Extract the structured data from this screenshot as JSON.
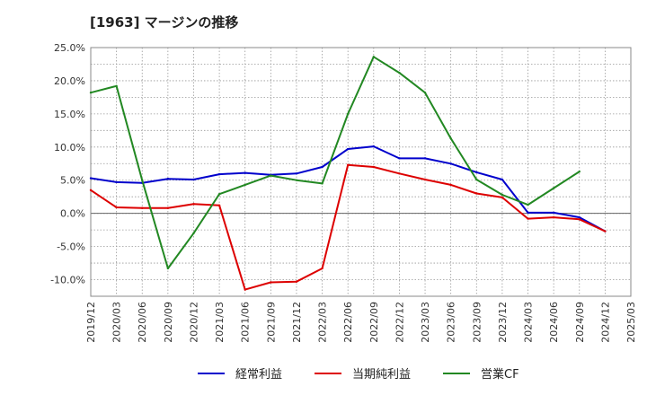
{
  "chart_data": {
    "type": "line",
    "title": "[1963]  マージンの推移",
    "x": [
      "2019/12",
      "2020/03",
      "2020/06",
      "2020/09",
      "2020/12",
      "2021/03",
      "2021/06",
      "2021/09",
      "2021/12",
      "2022/03",
      "2022/06",
      "2022/09",
      "2022/12",
      "2023/03",
      "2023/06",
      "2023/09",
      "2023/12",
      "2024/03",
      "2024/06",
      "2024/09",
      "2024/12",
      "2025/03"
    ],
    "ylim": [
      -12.5,
      25
    ],
    "yticks": [
      "25.0%",
      "20.0%",
      "15.0%",
      "10.0%",
      "5.0%",
      "0.0%",
      "-5.0%",
      "-10.0%"
    ],
    "ytick_values": [
      25,
      20,
      15,
      10,
      5,
      0,
      -5,
      -10
    ],
    "grid": true,
    "legend_position": "bottom",
    "series": [
      {
        "name": "経常利益",
        "color": "#0000cc",
        "values": [
          5.3,
          4.7,
          4.6,
          5.2,
          5.1,
          5.9,
          6.1,
          5.8,
          6.0,
          7.0,
          9.7,
          10.1,
          8.3,
          8.3,
          7.5,
          6.2,
          5.1,
          0.1,
          0.1,
          -0.6,
          -2.7,
          null
        ]
      },
      {
        "name": "当期純利益",
        "color": "#dd0000",
        "values": [
          3.5,
          0.9,
          0.8,
          0.8,
          1.4,
          1.2,
          -11.5,
          -10.4,
          -10.3,
          -8.3,
          7.3,
          7.0,
          6.0,
          5.1,
          4.3,
          3.0,
          2.4,
          -0.8,
          -0.6,
          -0.9,
          -2.7,
          null
        ]
      },
      {
        "name": "営業CF",
        "color": "#228822",
        "values": [
          18.2,
          19.2,
          5.0,
          -8.3,
          -3.0,
          2.9,
          4.3,
          5.7,
          5.0,
          4.5,
          15.0,
          23.6,
          21.2,
          18.2,
          11.3,
          5.1,
          2.8,
          1.3,
          3.8,
          6.3,
          null,
          null
        ]
      }
    ]
  }
}
